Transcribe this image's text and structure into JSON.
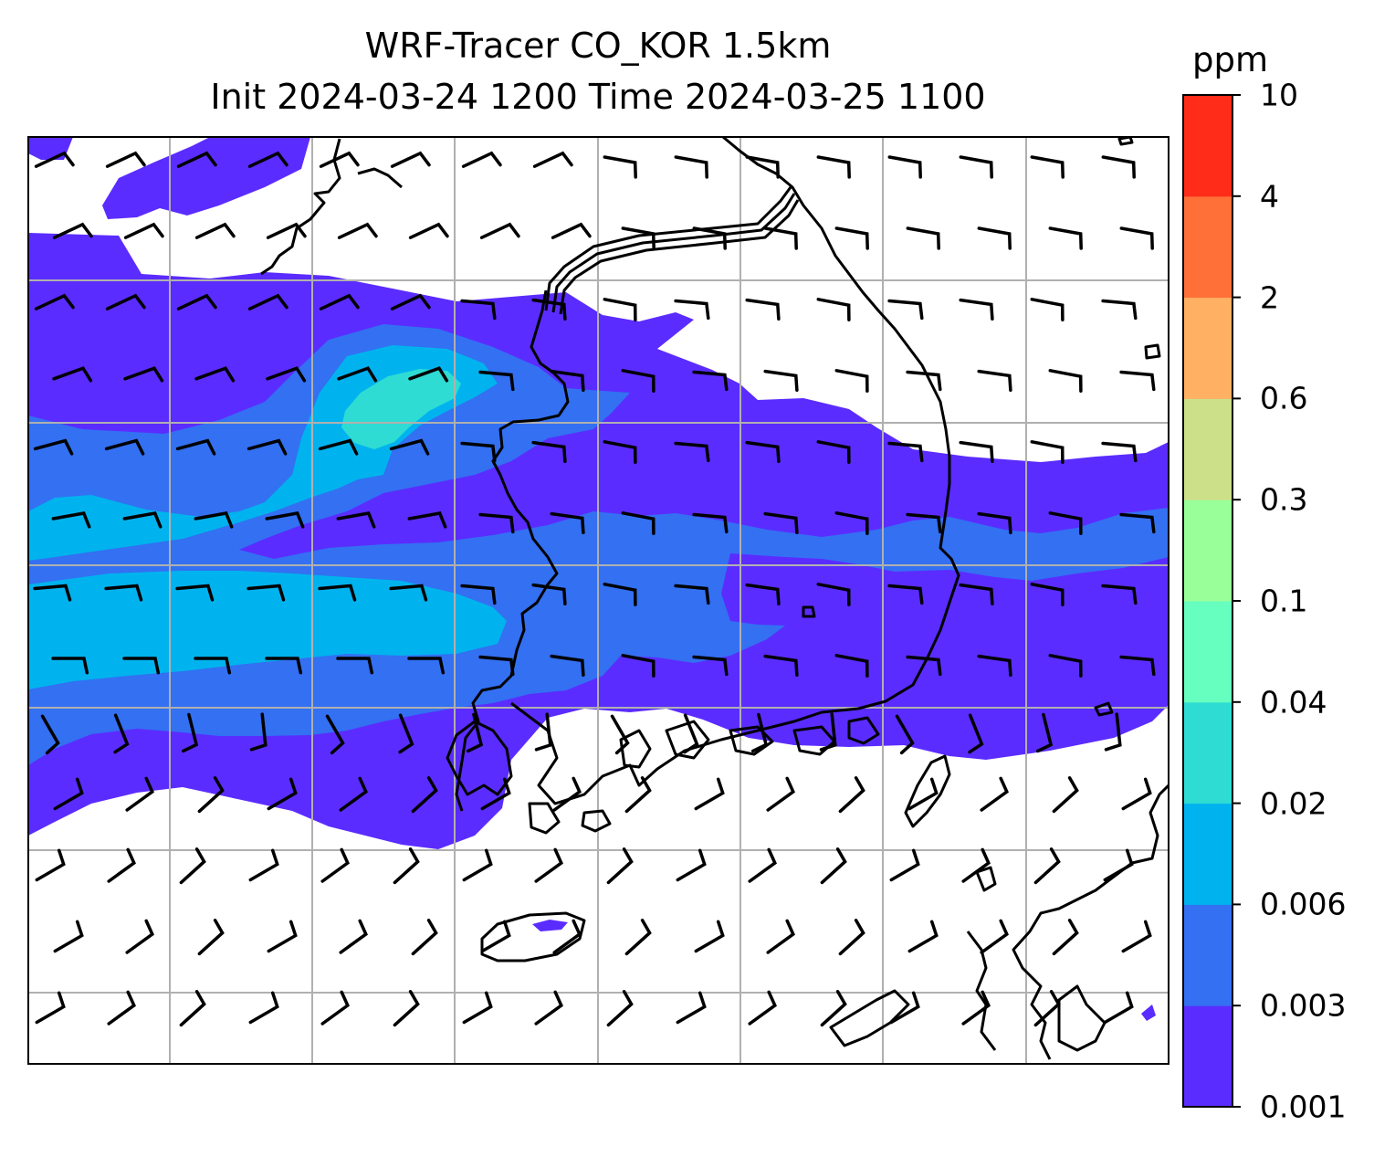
{
  "title": {
    "line1": "WRF-Tracer CO_KOR 1.5km",
    "line2": "Init 2024-03-24 1200 Time 2024-03-25 1100"
  },
  "colorbar": {
    "unit": "ppm",
    "ticks": [
      "0.001",
      "0.003",
      "0.006",
      "0.02",
      "0.04",
      "0.1",
      "0.3",
      "0.6",
      "2",
      "4",
      "10"
    ],
    "colors": [
      "#5b2cff",
      "#3370f2",
      "#00b3ee",
      "#2edcd3",
      "#66ffbf",
      "#99ff99",
      "#cce089",
      "#ffb063",
      "#ff7039",
      "#ff2c1a"
    ]
  },
  "map": {
    "gridlines": true,
    "grid_color": "#b0b0b0",
    "coastline_color": "#000000",
    "field_colors": {
      "level1": "#5b2cff",
      "level2": "#3370f2",
      "level3": "#00b3ee",
      "level4": "#2edcd3"
    }
  }
}
